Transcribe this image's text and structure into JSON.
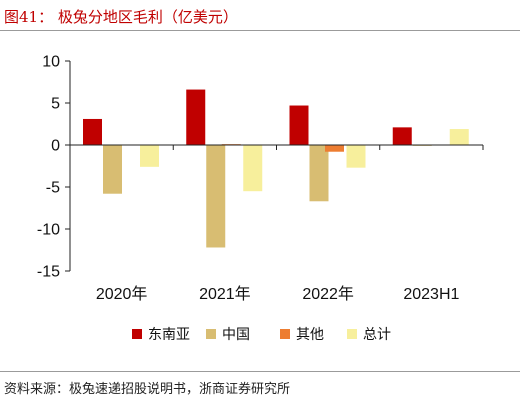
{
  "figure": {
    "title": "图41： 极兔分地区毛利（亿美元）",
    "source": "资料来源：极兔速递招股说明书，浙商证券研究所"
  },
  "chart_data": {
    "type": "bar",
    "categories": [
      "2020年",
      "2021年",
      "2022年",
      "2023H1"
    ],
    "series": [
      {
        "name": "东南亚",
        "color": "#c00000",
        "values": [
          3.1,
          6.6,
          4.7,
          2.1
        ]
      },
      {
        "name": "中国",
        "color": "#d8bd72",
        "values": [
          -5.8,
          -12.2,
          -6.7,
          -0.1
        ]
      },
      {
        "name": "其他",
        "color": "#ed7d31",
        "values": [
          0.0,
          0.1,
          -0.8,
          0.0
        ]
      },
      {
        "name": "总计",
        "color": "#f7ef9c",
        "values": [
          -2.6,
          -5.5,
          -2.7,
          1.9
        ]
      }
    ],
    "ylim": [
      -15,
      10
    ],
    "yticks": [
      10,
      5,
      0,
      -5,
      -10,
      -15
    ],
    "legend_position": "bottom",
    "grid": false
  }
}
